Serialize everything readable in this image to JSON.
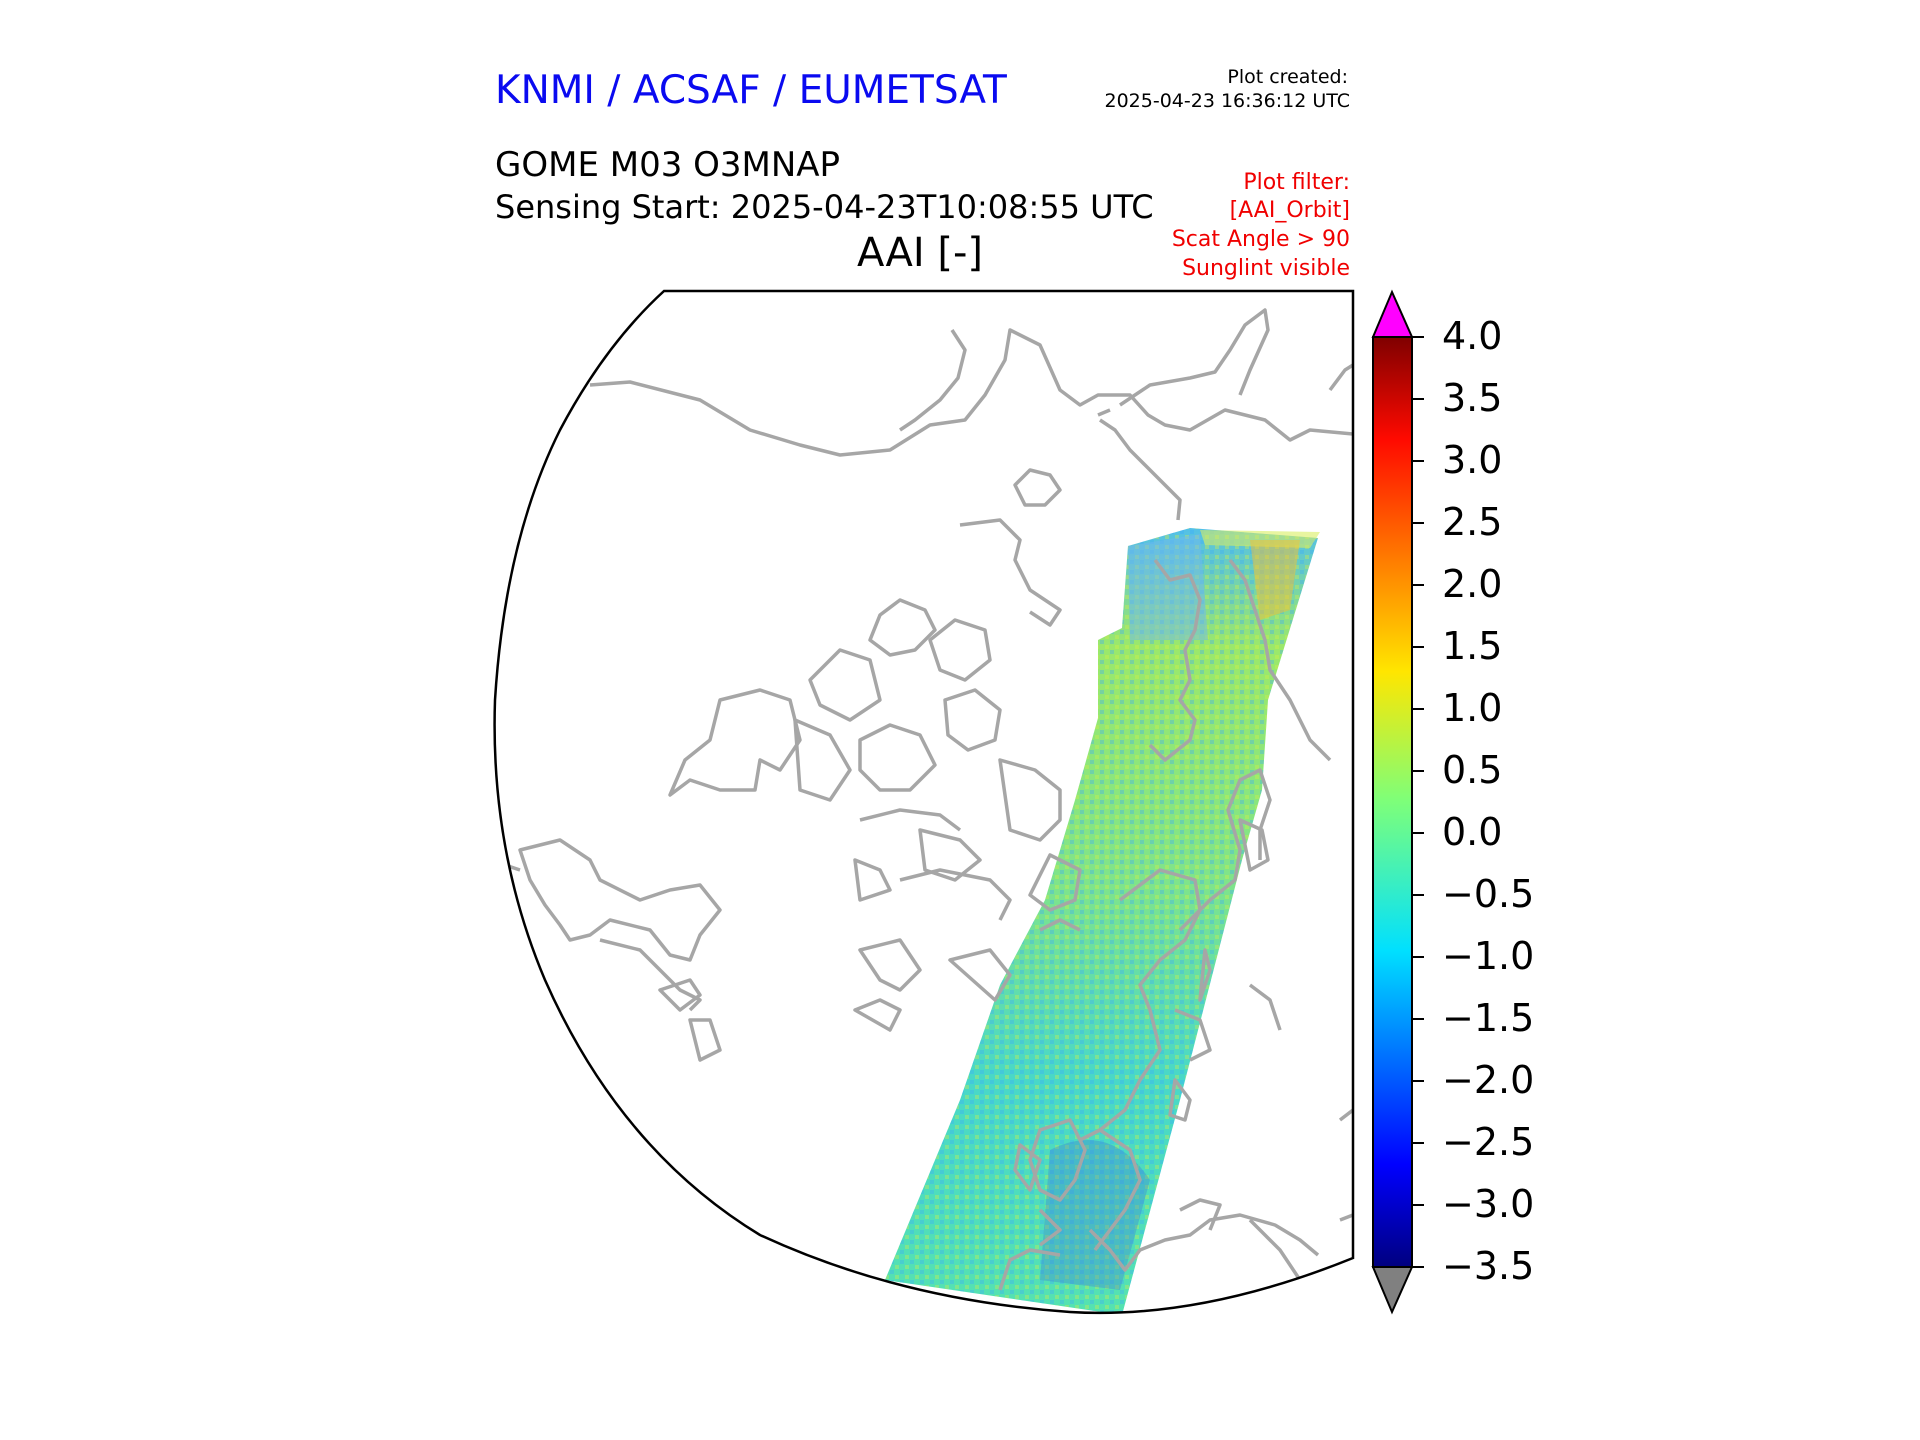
{
  "header": {
    "agency": "KNMI / ACSAF / EUMETSAT",
    "created_label": "Plot created:",
    "created_time": "2025-04-23 16:36:12 UTC",
    "product": "GOME M03 O3MNAP",
    "sensing_start": "Sensing Start: 2025-04-23T10:08:55 UTC",
    "variable": "AAI [-]",
    "filters": [
      "Plot filter:",
      "[AAI_Orbit]",
      "Scat Angle > 90",
      "Sunglint visible"
    ]
  },
  "colorbar": {
    "ticks": [
      "4.0",
      "3.5",
      "3.0",
      "2.5",
      "2.0",
      "1.5",
      "1.0",
      "0.5",
      "0.0",
      "−0.5",
      "−1.0",
      "−1.5",
      "−2.0",
      "−2.5",
      "−3.0",
      "−3.5"
    ],
    "min": -3.5,
    "max": 4.0,
    "over_color": "#ff00ff",
    "under_color": "#808080",
    "colormap": "jet"
  },
  "colors": {
    "coastline": "#a6a6a6",
    "frame": "#000000",
    "swath_base": "#52e6a8"
  }
}
